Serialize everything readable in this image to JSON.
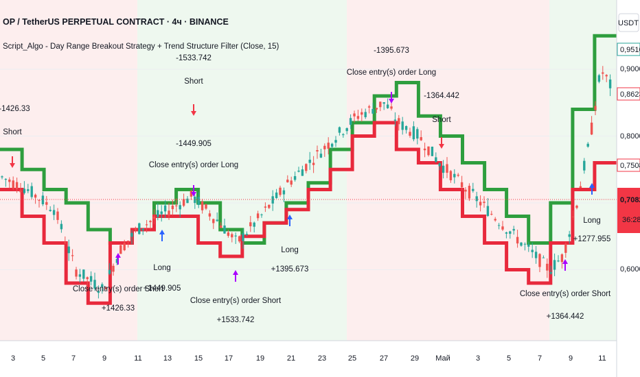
{
  "header": {
    "symbol_title": "OP / TetherUS PERPETUAL CONTRACT · 4ч · BINANCE",
    "strategy_title": "Script_Algo - Day Range Breakout Strategy + Trend Structure Filter (Close, 15)"
  },
  "price_axis": {
    "currency": "USDT",
    "labels": [
      "0,9000",
      "0,8000",
      "0,6000"
    ],
    "badges": [
      {
        "text": "0,9510",
        "color": "#26a69a"
      },
      {
        "text": "0,8623",
        "color": "#f23645"
      },
      {
        "text": "0,7508",
        "color": "#f23645"
      },
      {
        "text": "0,7082",
        "color": "#f23645"
      }
    ],
    "countdown": "36:28"
  },
  "time_axis": {
    "labels": [
      "3",
      "5",
      "7",
      "9",
      "11",
      "13",
      "15",
      "17",
      "19",
      "21",
      "23",
      "25",
      "27",
      "29",
      "Май",
      "3",
      "5",
      "7",
      "9",
      "11"
    ]
  },
  "colors": {
    "upper_line": "#2e9e3e",
    "lower_line": "#e8293c",
    "bull": "#26a69a",
    "bear": "#ef5350",
    "entry_long": "#2962ff",
    "entry_short": "#f23645",
    "exit": "#aa00ff",
    "bg_long": "#eef8ef",
    "bg_short": "#fdeeee"
  },
  "trades": [
    {
      "label": "-1426.33",
      "action": "Short"
    },
    {
      "label": "-1533.742",
      "action": "Short"
    },
    {
      "label": "-1449.905",
      "action": "Close entry(s) order Long"
    },
    {
      "label": "-1395.673",
      "action": "Close entry(s) order Long"
    },
    {
      "label": "-1364.442",
      "action": "Short"
    },
    {
      "label": "+1426.33",
      "action": "Close entry(s) order Short"
    },
    {
      "label": "+1449.905",
      "action": "Long"
    },
    {
      "label": "+1533.742",
      "action": "Close entry(s) order Short"
    },
    {
      "label": "+1395.673",
      "action": "Long"
    },
    {
      "label": "+1364.442",
      "action": "Close entry(s) order Short"
    },
    {
      "label": "+1277.955",
      "action": "Long"
    }
  ],
  "chart_data": {
    "type": "candlestick",
    "y_axis_labels": [
      0.6,
      0.8,
      0.9
    ],
    "current_price": 0.7082,
    "upper_line_levels": [
      0.78,
      0.75,
      0.72,
      0.7,
      0.66,
      0.64,
      0.66,
      0.7,
      0.72,
      0.7,
      0.66,
      0.64,
      0.67,
      0.7,
      0.73,
      0.78,
      0.82,
      0.86,
      0.88,
      0.83,
      0.8,
      0.76,
      0.72,
      0.68,
      0.64,
      0.7,
      0.84,
      0.95
    ],
    "lower_line_levels": [
      0.72,
      0.68,
      0.64,
      0.58,
      0.55,
      0.64,
      0.66,
      0.68,
      0.68,
      0.64,
      0.62,
      0.65,
      0.67,
      0.69,
      0.72,
      0.75,
      0.8,
      0.82,
      0.78,
      0.76,
      0.72,
      0.68,
      0.64,
      0.6,
      0.58,
      0.64,
      0.72,
      0.76
    ]
  }
}
